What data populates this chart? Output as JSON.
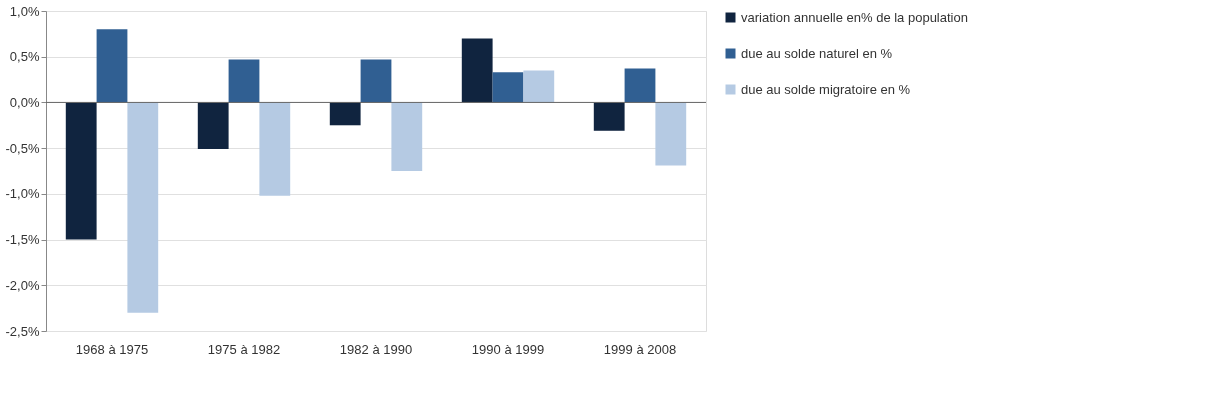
{
  "chart_data": {
    "type": "bar",
    "categories": [
      "1968 à 1975",
      "1975 à 1982",
      "1982 à 1990",
      "1990 à 1999",
      "1999 à 2008"
    ],
    "series": [
      {
        "name": "variation annuelle en% de la population",
        "color": "#10243f",
        "values": [
          -1.5,
          -0.51,
          -0.25,
          0.7,
          -0.31
        ]
      },
      {
        "name": "due au solde naturel en %",
        "color": "#305f92",
        "values": [
          0.8,
          0.47,
          0.47,
          0.33,
          0.37
        ]
      },
      {
        "name": "due au solde migratoire en %",
        "color": "#b5cae3",
        "values": [
          -2.3,
          -1.02,
          -0.75,
          0.35,
          -0.69
        ]
      }
    ],
    "ylim": [
      -2.5,
      1.0
    ],
    "yticks": [
      {
        "value": -2.5,
        "label": "-2,5%"
      },
      {
        "value": -2.0,
        "label": "-2,0%"
      },
      {
        "value": -1.5,
        "label": "-1,5%"
      },
      {
        "value": -1.0,
        "label": "-1,0%"
      },
      {
        "value": -0.5,
        "label": "-0,5%"
      },
      {
        "value": 0.0,
        "label": "0,0%"
      },
      {
        "value": 0.5,
        "label": "0,5%"
      },
      {
        "value": 1.0,
        "label": "1,0%"
      }
    ],
    "grid": "y",
    "legend": "right"
  }
}
